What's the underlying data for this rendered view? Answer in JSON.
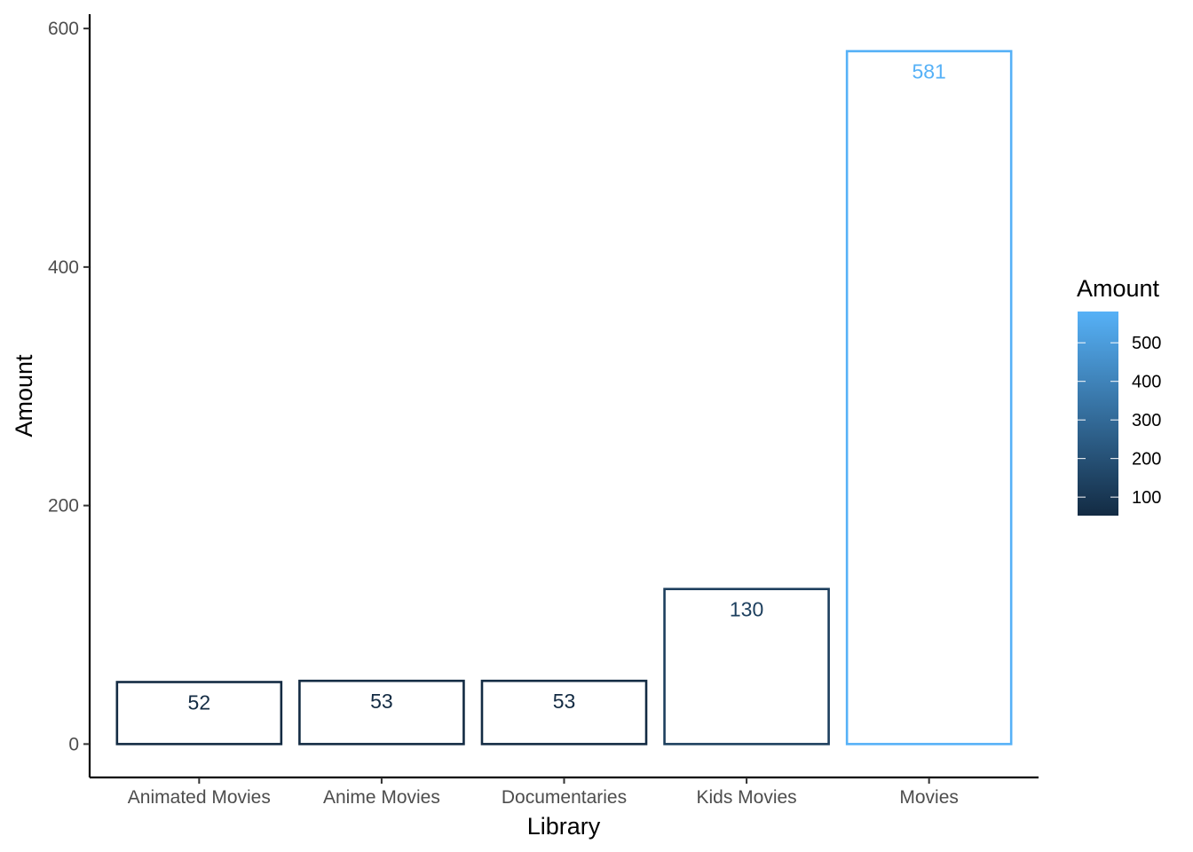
{
  "chart_data": {
    "type": "bar",
    "title": "",
    "xlabel": "Library",
    "ylabel": "Amount",
    "categories": [
      "Animated Movies",
      "Anime Movies",
      "Documentaries",
      "Kids Movies",
      "Movies"
    ],
    "values": [
      52,
      53,
      53,
      130,
      581
    ],
    "data_labels": [
      "52",
      "53",
      "53",
      "130",
      "581"
    ],
    "ylim": [
      -28,
      612
    ],
    "yticks": [
      0,
      200,
      400,
      600
    ],
    "grid": false,
    "bar_fill": "none",
    "bar_outline_mapped_to": "Amount",
    "legend": {
      "title": "Amount",
      "placement": "right",
      "type": "colorbar",
      "range": [
        52,
        581
      ],
      "ticks": [
        100,
        200,
        300,
        400,
        500
      ],
      "color_low": "#132B43",
      "color_high": "#56B1F7"
    }
  }
}
